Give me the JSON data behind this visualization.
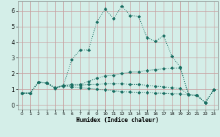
{
  "xlabel": "Humidex (Indice chaleur)",
  "xlim": [
    -0.5,
    23.5
  ],
  "ylim": [
    -0.3,
    6.6
  ],
  "yticks": [
    0,
    1,
    2,
    3,
    4,
    5,
    6
  ],
  "xticks": [
    0,
    1,
    2,
    3,
    4,
    5,
    6,
    7,
    8,
    9,
    10,
    11,
    12,
    13,
    14,
    15,
    16,
    17,
    18,
    19,
    20,
    21,
    22,
    23
  ],
  "bg_color": "#d4eee8",
  "grid_color": "#c8a0a0",
  "line_color": "#1a6e62",
  "lines": [
    {
      "x": [
        0,
        1,
        2,
        3,
        4,
        5,
        6,
        7,
        8,
        9,
        10,
        11,
        12,
        13,
        14,
        15,
        16,
        17,
        18,
        19,
        20,
        21,
        22,
        23
      ],
      "y": [
        0.75,
        0.75,
        1.45,
        1.4,
        1.05,
        1.25,
        2.9,
        3.5,
        3.5,
        5.3,
        6.1,
        5.5,
        6.3,
        5.7,
        5.65,
        4.3,
        4.05,
        4.4,
        3.1,
        2.4,
        0.65,
        0.6,
        0.15,
        0.95
      ]
    },
    {
      "x": [
        0,
        1,
        2,
        3,
        4,
        5,
        6,
        7,
        8,
        9,
        10,
        11,
        12,
        13,
        14,
        15,
        16,
        17,
        18,
        19,
        20,
        21,
        22,
        23
      ],
      "y": [
        0.75,
        0.75,
        1.45,
        1.4,
        1.05,
        1.25,
        1.3,
        1.3,
        1.5,
        1.7,
        1.85,
        1.9,
        2.0,
        2.1,
        2.1,
        2.2,
        2.25,
        2.3,
        2.35,
        2.35,
        0.65,
        0.6,
        0.15,
        0.95
      ]
    },
    {
      "x": [
        0,
        1,
        2,
        3,
        4,
        5,
        6,
        7,
        8,
        9,
        10,
        11,
        12,
        13,
        14,
        15,
        16,
        17,
        18,
        19,
        20,
        21,
        22,
        23
      ],
      "y": [
        0.75,
        0.75,
        1.45,
        1.4,
        1.1,
        1.25,
        1.25,
        1.25,
        1.3,
        1.3,
        1.35,
        1.35,
        1.35,
        1.3,
        1.3,
        1.25,
        1.2,
        1.15,
        1.1,
        1.05,
        0.65,
        0.6,
        0.15,
        0.95
      ]
    },
    {
      "x": [
        0,
        1,
        2,
        3,
        4,
        5,
        6,
        7,
        8,
        9,
        10,
        11,
        12,
        13,
        14,
        15,
        16,
        17,
        18,
        19,
        20,
        21,
        22,
        23
      ],
      "y": [
        0.75,
        0.75,
        1.45,
        1.4,
        1.1,
        1.2,
        1.15,
        1.1,
        1.05,
        1.0,
        0.95,
        0.9,
        0.85,
        0.82,
        0.8,
        0.78,
        0.76,
        0.74,
        0.72,
        0.7,
        0.65,
        0.6,
        0.15,
        0.95
      ]
    }
  ]
}
